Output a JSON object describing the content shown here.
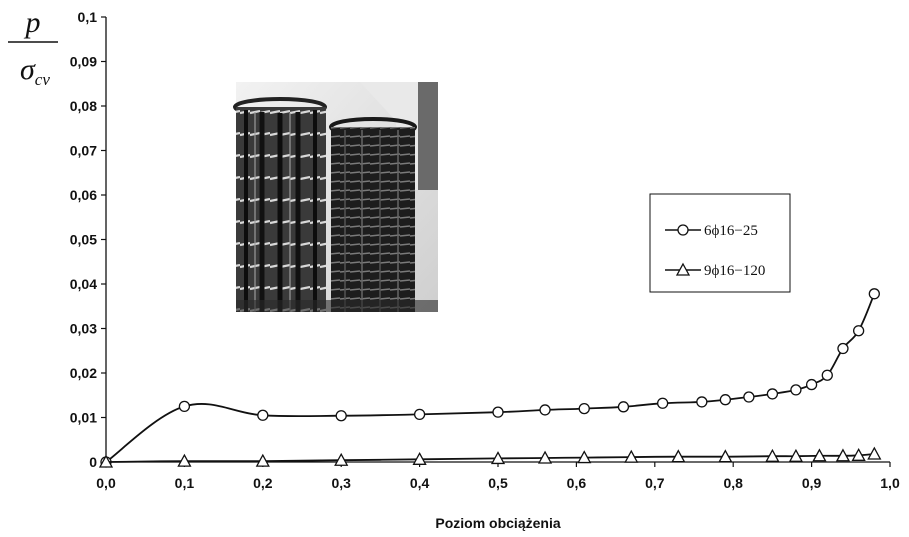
{
  "chart_data": {
    "type": "line",
    "xlabel": "Poziom obciążenia",
    "ylabel_num": "p",
    "ylabel_den": "σ",
    "ylabel_den_sub": "cv",
    "xlim": [
      0,
      1.0
    ],
    "ylim": [
      0,
      0.1
    ],
    "xticks": [
      0,
      0.1,
      0.2,
      0.3,
      0.4,
      0.5,
      0.6,
      0.7,
      0.8,
      0.9,
      1.0
    ],
    "xtick_labels": [
      "0,0",
      "0,1",
      "0,2",
      "0,3",
      "0,4",
      "0,5",
      "0,6",
      "0,7",
      "0,8",
      "0,9",
      "1,0"
    ],
    "yticks": [
      0,
      0.01,
      0.02,
      0.03,
      0.04,
      0.05,
      0.06,
      0.07,
      0.08,
      0.09,
      0.1
    ],
    "ytick_labels": [
      "0",
      "0,01",
      "0,02",
      "0,03",
      "0,04",
      "0,05",
      "0,06",
      "0,07",
      "0,08",
      "0,09",
      "0,1"
    ],
    "grid": false,
    "legend_position": "right",
    "series": [
      {
        "name": "6ϕ16−25",
        "marker": "circle",
        "color": "#111111",
        "x": [
          0.0,
          0.1,
          0.2,
          0.3,
          0.4,
          0.5,
          0.56,
          0.61,
          0.66,
          0.71,
          0.76,
          0.79,
          0.82,
          0.85,
          0.88,
          0.9,
          0.92,
          0.94,
          0.96,
          0.98
        ],
        "y": [
          0.0,
          0.0125,
          0.0105,
          0.0104,
          0.0107,
          0.0112,
          0.0117,
          0.012,
          0.0124,
          0.0132,
          0.0135,
          0.014,
          0.0146,
          0.0153,
          0.0162,
          0.0174,
          0.0195,
          0.0255,
          0.0295,
          0.0378
        ]
      },
      {
        "name": "9ϕ16−120",
        "marker": "triangle",
        "color": "#111111",
        "x": [
          0.0,
          0.1,
          0.2,
          0.3,
          0.4,
          0.5,
          0.56,
          0.61,
          0.67,
          0.73,
          0.79,
          0.85,
          0.88,
          0.91,
          0.94,
          0.96,
          0.98
        ],
        "y": [
          0.0,
          0.0002,
          0.0002,
          0.0004,
          0.0006,
          0.0008,
          0.0009,
          0.001,
          0.0011,
          0.0012,
          0.0012,
          0.0013,
          0.0013,
          0.0014,
          0.0014,
          0.0015,
          0.0018
        ]
      }
    ]
  },
  "photo": {
    "description_icon": "rebar-cages-photo"
  }
}
